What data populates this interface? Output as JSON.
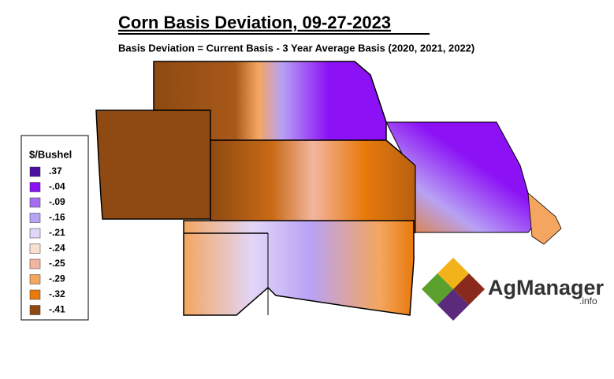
{
  "header": {
    "title": "Corn Basis Deviation, 09-27-2023",
    "subtitle": "Basis Deviation = Current Basis - 3 Year Average Basis (2020, 2021, 2022)"
  },
  "legend": {
    "title": "$/Bushel",
    "items": [
      {
        "label": ".37",
        "color": "#4b0fa0"
      },
      {
        "label": "-.04",
        "color": "#8c12f5"
      },
      {
        "label": "-.09",
        "color": "#a66ef2"
      },
      {
        "label": "-.16",
        "color": "#b8a2f5"
      },
      {
        "label": "-.21",
        "color": "#e2d6f8"
      },
      {
        "label": "-.24",
        "color": "#f8dfcf"
      },
      {
        "label": "-.25",
        "color": "#f3b5a0"
      },
      {
        "label": "-.29",
        "color": "#f4a660"
      },
      {
        "label": "-.32",
        "color": "#e87a0c"
      },
      {
        "label": "-.41",
        "color": "#8e4a12"
      }
    ]
  },
  "logo": {
    "name": "AgManager",
    "suffix": ".info"
  }
}
